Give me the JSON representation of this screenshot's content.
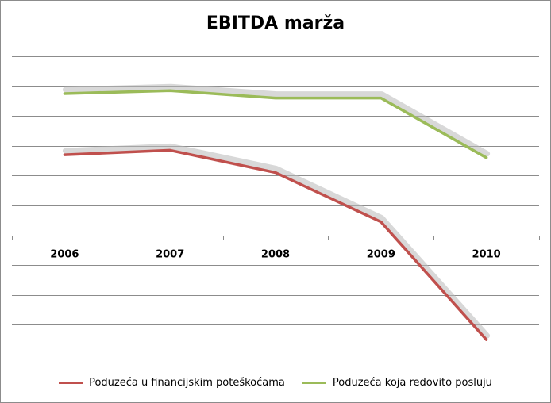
{
  "chart_data": {
    "type": "line",
    "title": "EBITDA marža",
    "categories": [
      "2006",
      "2007",
      "2008",
      "2009",
      "2010"
    ],
    "series": [
      {
        "name": "Poduzeća u financijskim poteškoćama",
        "color": "#c0504d",
        "values": [
          2.7,
          2.85,
          2.1,
          0.45,
          -3.5
        ]
      },
      {
        "name": "Poduzeća koja redovito posluju",
        "color": "#9bbb59",
        "values": [
          4.75,
          4.85,
          4.6,
          4.6,
          2.6
        ]
      }
    ],
    "ylim": [
      -4,
      6
    ],
    "grid": true,
    "legend_position": "bottom"
  }
}
